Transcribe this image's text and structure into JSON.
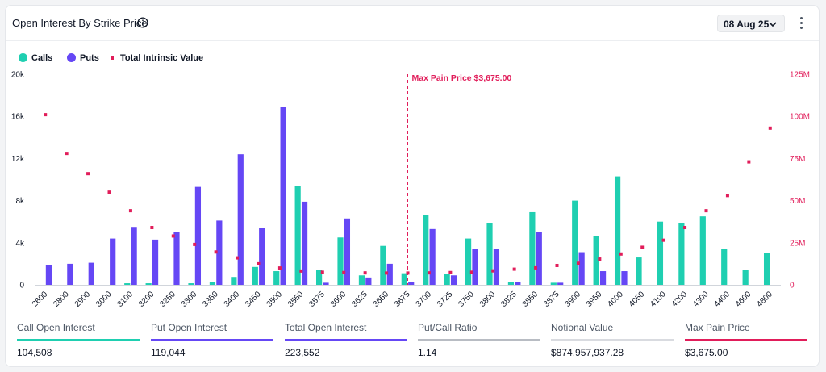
{
  "header": {
    "title": "Open Interest By Strike Price",
    "date": "08 Aug 25"
  },
  "legend": [
    {
      "label": "Calls",
      "color": "#1fcfb1",
      "shape": "circle"
    },
    {
      "label": "Puts",
      "color": "#6547f5",
      "shape": "circle"
    },
    {
      "label": "Total Intrinsic Value",
      "color": "#e11d5a",
      "shape": "square"
    }
  ],
  "chart_data": {
    "type": "bar",
    "categories": [
      "2600",
      "2800",
      "2900",
      "3000",
      "3100",
      "3200",
      "3250",
      "3300",
      "3350",
      "3400",
      "3450",
      "3500",
      "3550",
      "3575",
      "3600",
      "3625",
      "3650",
      "3675",
      "3700",
      "3725",
      "3750",
      "3800",
      "3825",
      "3850",
      "3875",
      "3900",
      "3950",
      "4000",
      "4050",
      "4100",
      "4200",
      "4300",
      "4400",
      "4600",
      "4800"
    ],
    "series": [
      {
        "name": "Calls",
        "axis": "left",
        "kind": "bar",
        "color": "#1fcfb1",
        "values": [
          0,
          0,
          0,
          0,
          150,
          150,
          0,
          150,
          300,
          750,
          1700,
          1300,
          9400,
          1400,
          4500,
          900,
          3700,
          1100,
          6600,
          1000,
          4400,
          5900,
          300,
          6900,
          200,
          8000,
          4600,
          10300,
          2600,
          6000,
          5900,
          6500,
          3400,
          1400,
          3000
        ]
      },
      {
        "name": "Puts",
        "axis": "left",
        "kind": "bar",
        "color": "#6547f5",
        "values": [
          1900,
          2000,
          2100,
          4400,
          5500,
          4300,
          5000,
          9300,
          6100,
          12400,
          5400,
          16900,
          7900,
          200,
          6300,
          700,
          2000,
          300,
          5300,
          900,
          3400,
          3400,
          300,
          5000,
          200,
          3100,
          1300,
          1300,
          0,
          0,
          0,
          0,
          0,
          0,
          0
        ]
      },
      {
        "name": "Total Intrinsic Value",
        "axis": "right",
        "kind": "point",
        "color": "#e11d5a",
        "values": [
          101000000,
          78000000,
          66000000,
          55000000,
          44000000,
          34000000,
          29000000,
          24000000,
          19500000,
          16000000,
          12500000,
          10000000,
          8200000,
          7500000,
          7300000,
          7100000,
          7000000,
          7000000,
          7100000,
          7300000,
          7500000,
          8300000,
          9300000,
          10100000,
          11500000,
          12800000,
          15300000,
          18300000,
          22300000,
          26500000,
          34000000,
          44000000,
          53000000,
          73000000,
          93000000
        ]
      }
    ],
    "y_left": {
      "min": 0,
      "max": 20000,
      "ticks": [
        0,
        4000,
        8000,
        12000,
        16000,
        20000
      ],
      "tick_labels": [
        "0",
        "4k",
        "8k",
        "12k",
        "16k",
        "20k"
      ]
    },
    "y_right": {
      "min": 0,
      "max": 125000000,
      "ticks": [
        0,
        25000000,
        50000000,
        75000000,
        100000000,
        125000000
      ],
      "tick_labels": [
        "0",
        "25M",
        "50M",
        "75M",
        "100M",
        "125M"
      ]
    },
    "max_pain": {
      "strike": "3675",
      "label": "Max Pain Price $3,675.00"
    },
    "grid": false,
    "legend_position": "top-left"
  },
  "stats": [
    {
      "label": "Call Open Interest",
      "value": "104,508",
      "color": "#1fcfb1"
    },
    {
      "label": "Put Open Interest",
      "value": "119,044",
      "color": "#6547f5"
    },
    {
      "label": "Total Open Interest",
      "value": "223,552",
      "color": "#6547f5"
    },
    {
      "label": "Put/Call Ratio",
      "value": "1.14",
      "color": "#b8bcc3"
    },
    {
      "label": "Notional Value",
      "value": "$874,957,937.28",
      "color": "#d9dbe0"
    },
    {
      "label": "Max Pain Price",
      "value": "$3,675.00",
      "color": "#e11d5a"
    }
  ]
}
